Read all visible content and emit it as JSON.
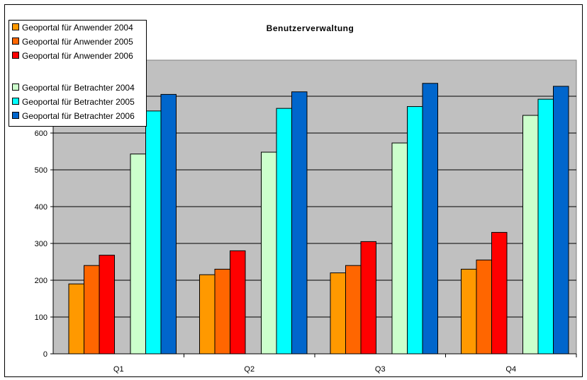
{
  "chart_data": {
    "type": "bar",
    "title": "Benutzerverwaltung",
    "xlabel": "",
    "ylabel": "",
    "categories": [
      "Q1",
      "Q2",
      "Q3",
      "Q4"
    ],
    "ylim": [
      0,
      700
    ],
    "yticks": [
      "0",
      "100",
      "200",
      "300",
      "400",
      "500",
      "600",
      "700"
    ],
    "grid": true,
    "legend_position": "top-left",
    "plot_background": "#c0c0c0",
    "series": [
      {
        "name": "Geoportal für Anwender 2004",
        "color": "#ff9900",
        "values": [
          190,
          215,
          220,
          230
        ]
      },
      {
        "name": "Geoportal für Anwender 2005",
        "color": "#ff6600",
        "values": [
          240,
          230,
          240,
          255
        ]
      },
      {
        "name": "Geoportal für Anwender 2006",
        "color": "#ff0000",
        "values": [
          268,
          280,
          305,
          330
        ]
      },
      {
        "name": "Geoportal für Betrachter 2004",
        "color": "#ccffcc",
        "values": [
          543,
          548,
          573,
          648
        ]
      },
      {
        "name": "Geoportal für Betrachter 2005",
        "color": "#00ffff",
        "values": [
          660,
          667,
          672,
          692
        ]
      },
      {
        "name": "Geoportal für Betrachter 2006",
        "color": "#0066cc",
        "values": [
          705,
          712,
          735,
          727
        ]
      }
    ]
  }
}
